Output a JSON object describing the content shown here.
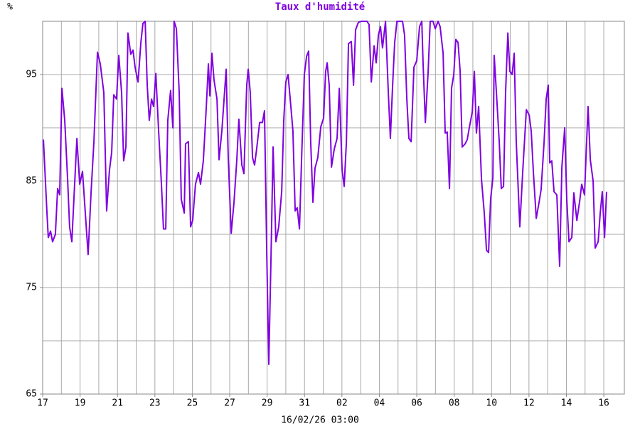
{
  "chart_data": {
    "type": "line",
    "title": "Taux d'humidité",
    "y_label": "%",
    "x_label": "16/02/26 03:00",
    "color": "#8000e0",
    "grid": true,
    "xlim": [
      0,
      31.1
    ],
    "ylim": [
      65,
      100
    ],
    "yticks": [
      65,
      75,
      85,
      95
    ],
    "yminor": [
      70,
      80,
      90,
      100
    ],
    "xticks": [
      {
        "value": 0,
        "label": "17"
      },
      {
        "value": 2,
        "label": "19"
      },
      {
        "value": 4,
        "label": "21"
      },
      {
        "value": 6,
        "label": "23"
      },
      {
        "value": 8,
        "label": "25"
      },
      {
        "value": 10,
        "label": "27"
      },
      {
        "value": 12,
        "label": "29"
      },
      {
        "value": 14,
        "label": "31"
      },
      {
        "value": 16,
        "label": "02"
      },
      {
        "value": 18,
        "label": "04"
      },
      {
        "value": 20,
        "label": "06"
      },
      {
        "value": 22,
        "label": "08"
      },
      {
        "value": 24,
        "label": "10"
      },
      {
        "value": 26,
        "label": "12"
      },
      {
        "value": 28,
        "label": "14"
      },
      {
        "value": 30,
        "label": "16"
      }
    ],
    "xminor": [
      1,
      3,
      5,
      7,
      9,
      11,
      13,
      15,
      17,
      19,
      21,
      23,
      25,
      27,
      29
    ],
    "x": [
      0.04,
      0.23,
      0.3,
      0.42,
      0.53,
      0.68,
      0.8,
      0.91,
      1.03,
      1.18,
      1.33,
      1.44,
      1.56,
      1.67,
      1.83,
      1.98,
      2.13,
      2.28,
      2.43,
      2.59,
      2.74,
      2.93,
      3.08,
      3.27,
      3.42,
      3.57,
      3.69,
      3.8,
      3.95,
      4.07,
      4.22,
      4.33,
      4.45,
      4.56,
      4.71,
      4.83,
      4.94,
      5.1,
      5.25,
      5.36,
      5.48,
      5.59,
      5.7,
      5.82,
      5.93,
      6.05,
      6.2,
      6.35,
      6.46,
      6.58,
      6.69,
      6.84,
      6.96,
      7.03,
      7.15,
      7.3,
      7.41,
      7.57,
      7.64,
      7.79,
      7.91,
      8.02,
      8.17,
      8.33,
      8.44,
      8.59,
      8.75,
      8.86,
      8.94,
      9.05,
      9.16,
      9.32,
      9.43,
      9.58,
      9.81,
      9.92,
      10.08,
      10.23,
      10.38,
      10.49,
      10.65,
      10.76,
      10.91,
      10.99,
      11.1,
      11.22,
      11.33,
      11.44,
      11.6,
      11.75,
      11.86,
      11.98,
      12.09,
      12.21,
      12.32,
      12.47,
      12.62,
      12.78,
      12.89,
      13.0,
      13.12,
      13.27,
      13.38,
      13.5,
      13.61,
      13.73,
      13.84,
      13.99,
      14.11,
      14.22,
      14.33,
      14.45,
      14.56,
      14.71,
      14.87,
      15.02,
      15.13,
      15.21,
      15.32,
      15.44,
      15.59,
      15.74,
      15.86,
      16.01,
      16.12,
      16.24,
      16.35,
      16.5,
      16.62,
      16.73,
      16.88,
      17.03,
      17.19,
      17.34,
      17.45,
      17.57,
      17.72,
      17.83,
      17.95,
      18.06,
      18.17,
      18.33,
      18.48,
      18.59,
      18.71,
      18.82,
      18.94,
      19.09,
      19.24,
      19.35,
      19.47,
      19.58,
      19.7,
      19.85,
      20.0,
      20.15,
      20.27,
      20.34,
      20.46,
      20.61,
      20.72,
      20.87,
      20.99,
      21.14,
      21.25,
      21.41,
      21.52,
      21.63,
      21.75,
      21.86,
      21.98,
      22.09,
      22.21,
      22.32,
      22.43,
      22.59,
      22.7,
      22.81,
      22.97,
      23.08,
      23.19,
      23.31,
      23.46,
      23.61,
      23.73,
      23.84,
      23.95,
      24.07,
      24.14,
      24.26,
      24.41,
      24.52,
      24.64,
      24.75,
      24.87,
      24.98,
      25.1,
      25.21,
      25.32,
      25.51,
      25.67,
      25.86,
      26.01,
      26.12,
      26.24,
      26.39,
      26.54,
      26.65,
      26.81,
      26.92,
      27.03,
      27.11,
      27.22,
      27.34,
      27.49,
      27.64,
      27.76,
      27.91,
      28.02,
      28.14,
      28.29,
      28.4,
      28.56,
      28.71,
      28.82,
      28.97,
      29.05,
      29.16,
      29.28,
      29.43,
      29.54,
      29.7,
      29.81,
      29.92,
      30.04,
      30.15
    ],
    "values": [
      88.9,
      82,
      79.7,
      80.3,
      79.3,
      80,
      84.3,
      83.7,
      93.7,
      90.7,
      85.3,
      80.7,
      79.3,
      83.3,
      89,
      84.7,
      85.9,
      82,
      78.1,
      84,
      88.7,
      97.1,
      96,
      93.3,
      82.2,
      86,
      87.7,
      93.1,
      92.7,
      96.8,
      93.3,
      86.9,
      88.2,
      98.9,
      96.9,
      97.3,
      95.7,
      94.3,
      98,
      99.8,
      100,
      94,
      90.7,
      92.7,
      92,
      95.1,
      89.7,
      84.7,
      80.5,
      80.5,
      90.7,
      93.5,
      90,
      100,
      99.3,
      93.3,
      83.3,
      82,
      88.5,
      88.7,
      80.7,
      81.3,
      84.7,
      85.8,
      84.7,
      86.9,
      92,
      96,
      93,
      97,
      94.5,
      92.7,
      87,
      89.7,
      95.5,
      87.3,
      80.1,
      83,
      87,
      90.8,
      86.5,
      85.7,
      94,
      95.5,
      93.3,
      87.2,
      86.5,
      88,
      90.5,
      90.5,
      91.6,
      78.3,
      67.8,
      78,
      88.2,
      79.3,
      80.7,
      84,
      90.7,
      94.3,
      95,
      92,
      89.7,
      82.2,
      82.5,
      80.5,
      86.9,
      95,
      96.7,
      97.2,
      88.7,
      83,
      86.2,
      87.2,
      90.1,
      90.9,
      95.3,
      96.1,
      94,
      86.3,
      88,
      89,
      93.7,
      86,
      84.5,
      88.7,
      97.9,
      98.1,
      94,
      99.2,
      99.9,
      100,
      100,
      100,
      99.7,
      94.3,
      97.7,
      96.1,
      98.7,
      99.5,
      97.5,
      100,
      93.3,
      89,
      94,
      98,
      100,
      100,
      100,
      98.7,
      92.7,
      89,
      88.7,
      95.7,
      96.3,
      99.5,
      100,
      96,
      90.5,
      95.3,
      100,
      100,
      99.3,
      100,
      99.5,
      97,
      89.5,
      89.6,
      84.3,
      93.7,
      95,
      98.3,
      98,
      95.3,
      88.2,
      88.5,
      88.9,
      90,
      91.5,
      95.3,
      89.5,
      92,
      85.2,
      82,
      78.5,
      78.3,
      83.3,
      85.3,
      96.8,
      93.3,
      88.7,
      84.3,
      84.5,
      93.3,
      98.9,
      95.3,
      95,
      97,
      88.7,
      80.7,
      86,
      91.7,
      91.2,
      89.7,
      85.7,
      81.5,
      83,
      84.2,
      88.7,
      92.7,
      94,
      86.7,
      86.9,
      84,
      83.7,
      77,
      86.3,
      90,
      83.3,
      79.3,
      79.7,
      83.9,
      81.3,
      83.1,
      84.7,
      83.7,
      87.3,
      92,
      87,
      85,
      78.7,
      79.3,
      82,
      84,
      79.7,
      84
    ]
  }
}
